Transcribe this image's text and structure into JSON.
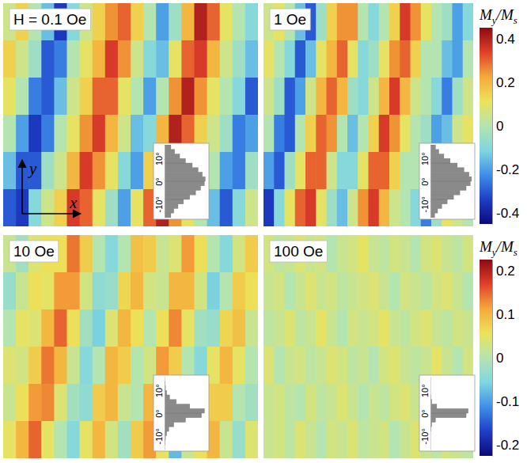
{
  "chart_data": [
    {
      "type": "heatmap",
      "colorbar": {
        "label": "My/Ms",
        "range": [
          -0.45,
          0.45
        ],
        "ticks": [
          0.4,
          0.2,
          0,
          -0.2,
          -0.4
        ]
      },
      "panels": [
        {
          "title": "H = 0.1 Oe",
          "x_label": "x",
          "y_label": "y",
          "cells": [
            [
              0.05,
              0.15,
              0.0,
              -0.15,
              -0.35,
              -0.1,
              0.05,
              0.15,
              0.25,
              0.3,
              0.15,
              0.0,
              -0.2,
              -0.05,
              0.2,
              0.4,
              0.3,
              0.1,
              0.0,
              -0.1
            ],
            [
              0.15,
              0.05,
              -0.05,
              -0.3,
              -0.25,
              0.0,
              0.1,
              0.2,
              0.35,
              0.25,
              0.05,
              -0.1,
              -0.15,
              0.1,
              0.3,
              0.35,
              0.2,
              0.05,
              -0.05,
              -0.15
            ],
            [
              0.1,
              0.0,
              -0.25,
              -0.3,
              -0.15,
              0.05,
              0.15,
              0.3,
              0.3,
              0.1,
              0.0,
              -0.2,
              0.0,
              0.25,
              0.4,
              0.25,
              0.1,
              0.0,
              -0.1,
              -0.3
            ],
            [
              0.0,
              -0.2,
              -0.35,
              -0.25,
              0.0,
              0.1,
              0.25,
              0.35,
              0.2,
              0.05,
              -0.15,
              -0.1,
              0.2,
              0.4,
              0.3,
              0.15,
              0.05,
              -0.05,
              -0.25,
              -0.2
            ],
            [
              -0.15,
              -0.3,
              -0.3,
              -0.05,
              0.05,
              0.2,
              0.35,
              0.25,
              0.1,
              -0.1,
              -0.2,
              0.15,
              0.3,
              0.35,
              0.2,
              0.1,
              0.0,
              -0.2,
              -0.25,
              -0.05
            ],
            [
              -0.3,
              -0.35,
              -0.1,
              0.05,
              0.15,
              0.35,
              0.3,
              0.1,
              -0.05,
              -0.2,
              0.1,
              0.3,
              0.4,
              0.25,
              0.1,
              0.0,
              -0.15,
              -0.3,
              -0.1,
              0.05
            ]
          ],
          "histogram": {
            "type": "bar",
            "orientation": "horizontal",
            "tick_labels": "y",
            "bins": [
              -16,
              -14,
              -12,
              -10,
              -8,
              -6,
              -4,
              -2,
              0,
              2,
              4,
              6,
              8,
              10,
              12,
              14,
              16
            ],
            "counts": [
              0.15,
              0.22,
              0.32,
              0.45,
              0.6,
              0.74,
              0.86,
              0.95,
              0.97,
              0.9,
              0.8,
              0.66,
              0.5,
              0.36,
              0.24,
              0.15
            ],
            "xlim": [
              0,
              1
            ],
            "ylim": [
              -16,
              16
            ],
            "yticks": [
              {
                "value": -10,
                "label": "-10°"
              },
              {
                "value": 0,
                "label": "0°"
              },
              {
                "value": 10,
                "label": "10°"
              }
            ]
          }
        },
        {
          "title": "1 Oe",
          "cells": [
            [
              0.05,
              0.1,
              0.0,
              -0.15,
              -0.3,
              -0.05,
              0.15,
              0.25,
              0.25,
              0.0,
              -0.1,
              0.0,
              0.15,
              0.35,
              0.25,
              0.1,
              0.0,
              -0.05,
              -0.2,
              -0.1
            ],
            [
              0.1,
              0.0,
              -0.1,
              -0.3,
              -0.15,
              0.1,
              0.2,
              0.3,
              0.1,
              -0.1,
              -0.05,
              0.1,
              0.25,
              0.3,
              0.15,
              0.0,
              0.0,
              -0.15,
              -0.2,
              0.0
            ],
            [
              0.05,
              -0.05,
              -0.3,
              -0.2,
              0.05,
              0.2,
              0.3,
              0.2,
              -0.05,
              -0.1,
              0.05,
              0.2,
              0.35,
              0.2,
              0.05,
              0.0,
              -0.1,
              -0.25,
              -0.05,
              0.05
            ],
            [
              0.0,
              -0.25,
              -0.3,
              0.0,
              0.15,
              0.3,
              0.25,
              0.0,
              -0.15,
              0.0,
              0.15,
              0.35,
              0.25,
              0.1,
              0.0,
              -0.05,
              -0.2,
              -0.15,
              0.05,
              0.1
            ],
            [
              -0.2,
              -0.3,
              -0.05,
              0.1,
              0.3,
              0.3,
              0.05,
              -0.1,
              -0.1,
              0.1,
              0.3,
              0.3,
              0.15,
              0.0,
              0.0,
              -0.15,
              -0.2,
              0.0,
              0.1,
              0.05
            ],
            [
              -0.35,
              -0.1,
              0.1,
              0.3,
              0.35,
              0.1,
              -0.05,
              -0.15,
              0.05,
              0.25,
              0.35,
              0.2,
              0.05,
              0.0,
              -0.1,
              -0.25,
              -0.05,
              0.1,
              0.05,
              0.0
            ]
          ],
          "histogram": {
            "type": "bar",
            "orientation": "horizontal",
            "tick_labels": "y",
            "bins": [
              -16,
              -14,
              -12,
              -10,
              -8,
              -6,
              -4,
              -2,
              0,
              2,
              4,
              6,
              8,
              10,
              12,
              14,
              16
            ],
            "counts": [
              0.1,
              0.17,
              0.27,
              0.4,
              0.55,
              0.7,
              0.85,
              0.95,
              0.98,
              0.92,
              0.8,
              0.64,
              0.47,
              0.32,
              0.2,
              0.12
            ],
            "xlim": [
              0,
              1
            ],
            "ylim": [
              -16,
              16
            ],
            "yticks": [
              {
                "value": -10,
                "label": "-10°"
              },
              {
                "value": 0,
                "label": "0°"
              },
              {
                "value": 10,
                "label": "10°"
              }
            ]
          }
        }
      ]
    },
    {
      "type": "heatmap",
      "colorbar": {
        "label": "My/Ms",
        "range": [
          -0.225,
          0.225
        ],
        "ticks": [
          0.2,
          0.1,
          0,
          -0.1,
          -0.2
        ]
      },
      "panels": [
        {
          "title": "10 Oe",
          "cells": [
            [
              0.02,
              -0.02,
              0.04,
              0.06,
              0.06,
              0.14,
              0.08,
              0.0,
              -0.05,
              0.0,
              0.09,
              0.08,
              0.02,
              0.04,
              0.12,
              0.06,
              0.0,
              -0.05,
              0.03,
              0.08
            ],
            [
              -0.03,
              0.02,
              0.06,
              0.05,
              0.12,
              0.12,
              0.03,
              -0.04,
              -0.03,
              0.07,
              0.1,
              0.03,
              0.02,
              0.1,
              0.1,
              0.03,
              -0.06,
              0.0,
              0.08,
              0.06
            ],
            [
              0.0,
              0.05,
              0.04,
              0.1,
              0.15,
              0.06,
              -0.02,
              -0.06,
              0.04,
              0.1,
              0.06,
              0.0,
              0.06,
              0.13,
              0.05,
              -0.02,
              -0.03,
              0.07,
              0.09,
              0.02
            ],
            [
              0.04,
              0.03,
              0.08,
              0.14,
              0.1,
              0.02,
              -0.05,
              0.0,
              0.1,
              0.08,
              0.0,
              0.03,
              0.12,
              0.08,
              0.0,
              -0.05,
              0.05,
              0.1,
              0.05,
              0.0
            ],
            [
              0.02,
              0.06,
              0.12,
              0.13,
              0.04,
              -0.02,
              -0.04,
              0.08,
              0.1,
              0.02,
              0.0,
              0.1,
              0.1,
              0.03,
              -0.06,
              0.03,
              0.08,
              0.08,
              0.0,
              -0.02
            ],
            [
              0.05,
              0.1,
              0.15,
              0.05,
              0.0,
              -0.05,
              0.05,
              0.1,
              0.03,
              -0.02,
              0.08,
              0.12,
              0.05,
              -0.08,
              0.02,
              0.06,
              0.1,
              0.02,
              -0.03,
              0.04
            ]
          ],
          "histogram": {
            "type": "bar",
            "orientation": "horizontal",
            "tick_labels": "y",
            "bins": [
              -16,
              -14,
              -12,
              -10,
              -8,
              -6,
              -4,
              -2,
              0,
              2,
              4,
              6,
              8,
              10,
              12,
              14,
              16
            ],
            "counts": [
              0.0,
              0.01,
              0.02,
              0.05,
              0.1,
              0.22,
              0.5,
              0.88,
              0.95,
              0.6,
              0.28,
              0.12,
              0.05,
              0.02,
              0.01,
              0.0
            ],
            "xlim": [
              0,
              1
            ],
            "ylim": [
              -16,
              16
            ],
            "yticks": [
              {
                "value": -10,
                "label": "-10°"
              },
              {
                "value": 0,
                "label": "0°"
              },
              {
                "value": 10,
                "label": "10°"
              }
            ]
          }
        },
        {
          "title": "100 Oe",
          "cells": [
            [
              0.03,
              0.01,
              0.02,
              0.04,
              0.02,
              0.03,
              0.0,
              0.02,
              0.03,
              0.05,
              0.02,
              0.01,
              0.03,
              0.02,
              0.0,
              0.03,
              0.04,
              0.02,
              0.01,
              0.03
            ],
            [
              0.02,
              0.03,
              0.0,
              0.02,
              0.04,
              0.02,
              0.03,
              0.01,
              0.02,
              0.03,
              0.04,
              0.02,
              0.0,
              0.03,
              0.02,
              0.01,
              0.03,
              0.04,
              0.02,
              0.0
            ],
            [
              0.01,
              0.02,
              0.04,
              0.01,
              0.02,
              0.05,
              0.02,
              0.0,
              0.03,
              0.02,
              0.03,
              0.05,
              0.02,
              0.01,
              0.03,
              0.04,
              0.02,
              0.01,
              0.03,
              0.02
            ],
            [
              0.04,
              0.0,
              0.02,
              0.03,
              0.01,
              0.02,
              0.04,
              0.03,
              0.01,
              0.02,
              0.0,
              0.03,
              0.04,
              0.02,
              0.01,
              0.02,
              0.05,
              0.02,
              0.0,
              0.03
            ],
            [
              0.02,
              0.03,
              0.01,
              0.0,
              0.03,
              0.01,
              0.02,
              0.04,
              0.02,
              0.0,
              0.02,
              0.01,
              0.03,
              0.04,
              0.02,
              0.0,
              0.02,
              0.03,
              0.04,
              0.01
            ],
            [
              0.02,
              0.03,
              0.01,
              0.04,
              0.02,
              0.0,
              0.03,
              0.02,
              0.04,
              0.01,
              0.02,
              0.03,
              0.0,
              0.02,
              0.04,
              0.02,
              0.01,
              0.03,
              0.02,
              0.01
            ]
          ],
          "histogram": {
            "type": "bar",
            "orientation": "horizontal",
            "tick_labels": "y",
            "bins": [
              -16,
              -14,
              -12,
              -10,
              -8,
              -6,
              -4,
              -2,
              0,
              2,
              4,
              6,
              8,
              10,
              12,
              14,
              16
            ],
            "counts": [
              0,
              0,
              0,
              0,
              0.01,
              0.03,
              0.12,
              0.85,
              0.9,
              0.15,
              0.03,
              0.01,
              0,
              0,
              0,
              0
            ],
            "xlim": [
              0,
              1
            ],
            "ylim": [
              -16,
              16
            ],
            "yticks": [
              {
                "value": -10,
                "label": "-10°"
              },
              {
                "value": 0,
                "label": "0°"
              },
              {
                "value": 10,
                "label": "10°"
              }
            ]
          }
        }
      ]
    }
  ]
}
